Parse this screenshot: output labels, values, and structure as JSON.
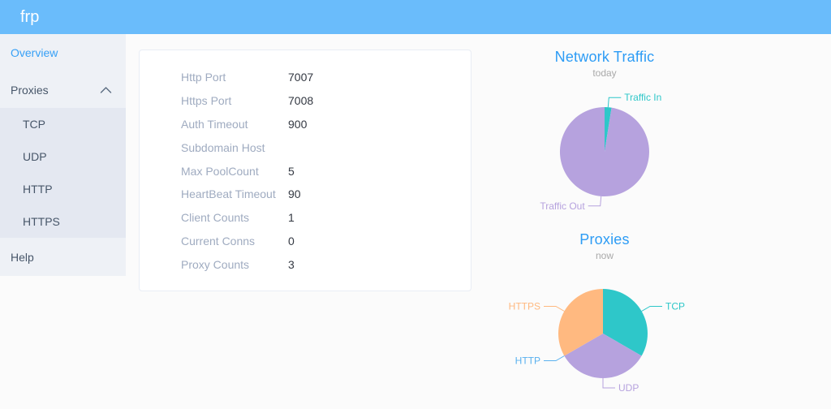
{
  "header": {
    "title": "frp"
  },
  "sidebar": {
    "overview": {
      "label": "Overview",
      "active": true
    },
    "proxies": {
      "label": "Proxies",
      "expanded": true,
      "children": [
        {
          "label": "TCP"
        },
        {
          "label": "UDP"
        },
        {
          "label": "HTTP"
        },
        {
          "label": "HTTPS"
        }
      ]
    },
    "help": {
      "label": "Help"
    }
  },
  "server_info": {
    "rows": [
      {
        "label": "Http Port",
        "value": "7007"
      },
      {
        "label": "Https Port",
        "value": "7008"
      },
      {
        "label": "Auth Timeout",
        "value": "900"
      },
      {
        "label": "Subdomain Host",
        "value": ""
      },
      {
        "label": "Max PoolCount",
        "value": "5"
      },
      {
        "label": "HeartBeat Timeout",
        "value": "90"
      },
      {
        "label": "Client Counts",
        "value": "1"
      },
      {
        "label": "Current Conns",
        "value": "0"
      },
      {
        "label": "Proxy Counts",
        "value": "3"
      }
    ]
  },
  "chart_data": [
    {
      "type": "pie",
      "title": "Network Traffic",
      "subtitle": "today",
      "legend_position": "outside labels with leader lines",
      "slices": [
        {
          "name": "Traffic In",
          "value": 2.5,
          "color": "#2ec7c9"
        },
        {
          "name": "Traffic Out",
          "value": 97.5,
          "color": "#b6a2de"
        }
      ]
    },
    {
      "type": "pie",
      "title": "Proxies",
      "subtitle": "now",
      "legend_position": "outside labels with leader lines",
      "slices": [
        {
          "name": "TCP",
          "value": 1,
          "color": "#2ec7c9"
        },
        {
          "name": "UDP",
          "value": 1,
          "color": "#b6a2de"
        },
        {
          "name": "HTTP",
          "value": 0,
          "color": "#5ab1ef"
        },
        {
          "name": "HTTPS",
          "value": 1,
          "color": "#ffb980"
        }
      ]
    }
  ],
  "colors": {
    "header_bg": "#6abcfb",
    "accent_blue": "#36a0f6",
    "chart_title_blue": "#2d9cf5",
    "sidebar_bg": "#eef1f6",
    "submenu_bg": "#e4e8f1",
    "menu_text": "#475669",
    "label_gray": "#9fabc0",
    "value_dark": "#333842",
    "page_bg": "#fbfbfb",
    "card_border": "#e9edf5",
    "subtitle_gray": "#a9a9a9"
  }
}
